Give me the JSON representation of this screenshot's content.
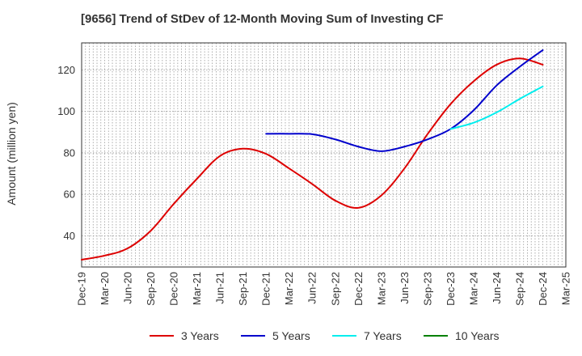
{
  "chart_data": {
    "type": "line",
    "title": "[9656]  Trend of StDev of 12-Month Moving Sum of Investing CF",
    "xlabel": "",
    "ylabel": "Amount (million yen)",
    "ylim": [
      25,
      133
    ],
    "yticks": [
      40,
      60,
      80,
      100,
      120
    ],
    "categories": [
      "Dec-19",
      "Mar-20",
      "Jun-20",
      "Sep-20",
      "Dec-20",
      "Mar-21",
      "Jun-21",
      "Sep-21",
      "Dec-21",
      "Mar-22",
      "Jun-22",
      "Sep-22",
      "Dec-22",
      "Mar-23",
      "Jun-23",
      "Sep-23",
      "Dec-23",
      "Mar-24",
      "Jun-24",
      "Sep-24",
      "Dec-24",
      "Mar-25"
    ],
    "grid": true,
    "legend_position": "bottom",
    "series": [
      {
        "name": "3 Years",
        "color": "#dd0000",
        "values": [
          28.5,
          30.5,
          34.0,
          42.5,
          55.5,
          67.5,
          78.5,
          82.0,
          79.5,
          72.5,
          65.0,
          57.0,
          53.5,
          59.5,
          72.5,
          89.0,
          103.5,
          114.5,
          122.5,
          125.5,
          122.5,
          null
        ]
      },
      {
        "name": "5 Years",
        "color": "#0000cc",
        "values": [
          null,
          null,
          null,
          null,
          null,
          null,
          null,
          null,
          89.2,
          89.2,
          89.0,
          86.5,
          83.0,
          80.8,
          83.0,
          86.5,
          91.5,
          100.5,
          112.5,
          121.5,
          129.5,
          null
        ]
      },
      {
        "name": "7 Years",
        "color": "#00eeee",
        "values": [
          null,
          null,
          null,
          null,
          null,
          null,
          null,
          null,
          null,
          null,
          null,
          null,
          null,
          null,
          null,
          null,
          91.5,
          94.5,
          99.5,
          106.0,
          112.0,
          null
        ]
      },
      {
        "name": "10 Years",
        "color": "#008000",
        "values": [
          null,
          null,
          null,
          null,
          null,
          null,
          null,
          null,
          null,
          null,
          null,
          null,
          null,
          null,
          null,
          null,
          null,
          null,
          null,
          null,
          null,
          null
        ]
      }
    ]
  }
}
